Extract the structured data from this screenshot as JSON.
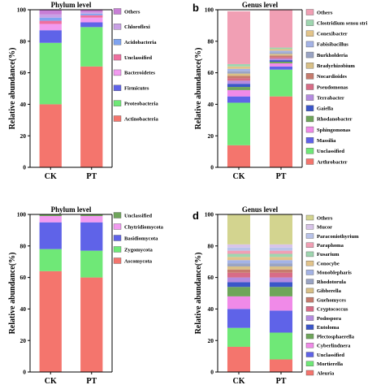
{
  "chart_data": [
    {
      "type": "bar",
      "stacked": true,
      "panel_letter": "",
      "title": "Phylum level",
      "xlabel": "",
      "ylabel": "Relative abundance(%)",
      "ylim": [
        0,
        100
      ],
      "yticks": [
        "0",
        "20",
        "40",
        "60",
        "80",
        "100"
      ],
      "categories": [
        "CK",
        "PT"
      ],
      "legend_position": "right",
      "series": [
        {
          "name": "Actinobacteria",
          "color": "#f4756d",
          "values": [
            40,
            64
          ]
        },
        {
          "name": "Proteobacteria",
          "color": "#6fe877",
          "values": [
            39,
            25
          ]
        },
        {
          "name": "Firmicutes",
          "color": "#5f63e8",
          "values": [
            8,
            3
          ]
        },
        {
          "name": "Bacteroidetes",
          "color": "#f29af0",
          "values": [
            4,
            3
          ]
        },
        {
          "name": "Unclassified",
          "color": "#ef6fa0",
          "values": [
            2,
            1.5
          ]
        },
        {
          "name": "Acidobacteria",
          "color": "#7fa3f0",
          "values": [
            2,
            1
          ]
        },
        {
          "name": "Chloroflexi",
          "color": "#c9a1e6",
          "values": [
            2,
            1
          ]
        },
        {
          "name": "Others",
          "color": "#c87ed6",
          "values": [
            3,
            1.5
          ]
        }
      ]
    },
    {
      "type": "bar",
      "stacked": true,
      "panel_letter": "b",
      "title": "Genus level",
      "xlabel": "",
      "ylabel": "Relative abundance(%)",
      "ylim": [
        0,
        100
      ],
      "yticks": [
        "0",
        "20",
        "40",
        "60",
        "80",
        "100"
      ],
      "categories": [
        "CK",
        "PT"
      ],
      "legend_position": "right",
      "series": [
        {
          "name": "Arthrobacter",
          "color": "#f4756d",
          "values": [
            14,
            45
          ]
        },
        {
          "name": "Unclassified",
          "color": "#6fe877",
          "values": [
            27,
            17
          ]
        },
        {
          "name": "Massilia",
          "color": "#5f63e8",
          "values": [
            4,
            2
          ]
        },
        {
          "name": "Sphingomonas",
          "color": "#f08ae8",
          "values": [
            4,
            2
          ]
        },
        {
          "name": "Rhodanobacter",
          "color": "#6ea55a",
          "values": [
            2,
            1
          ]
        },
        {
          "name": "Gaiella",
          "color": "#3b56c9",
          "values": [
            2,
            1
          ]
        },
        {
          "name": "Terrabacter",
          "color": "#b48be0",
          "values": [
            2,
            1
          ]
        },
        {
          "name": "Pseudomonas",
          "color": "#d86c86",
          "values": [
            1.5,
            1
          ]
        },
        {
          "name": "Nocardioides",
          "color": "#c67b6d",
          "values": [
            1.5,
            1
          ]
        },
        {
          "name": "Bradyrhizobium",
          "color": "#d9c087",
          "values": [
            1.5,
            1
          ]
        },
        {
          "name": "Burkholderia",
          "color": "#9aa4c4",
          "values": [
            1.5,
            1
          ]
        },
        {
          "name": "Fabisibacillus",
          "color": "#a4b3e6",
          "values": [
            1.5,
            1
          ]
        },
        {
          "name": "Conexibacter",
          "color": "#e3c48a",
          "values": [
            1.5,
            1
          ]
        },
        {
          "name": "Clostridium sensu stri",
          "color": "#9fd6b0",
          "values": [
            1.5,
            1
          ]
        },
        {
          "name": "Others",
          "color": "#f19fb4",
          "values": [
            33.5,
            24
          ]
        }
      ]
    },
    {
      "type": "bar",
      "stacked": true,
      "panel_letter": "",
      "title": "Phylum level",
      "xlabel": "",
      "ylabel": "Relative abundance(%)",
      "ylim": [
        0,
        100
      ],
      "yticks": [
        "0",
        "20",
        "40",
        "60",
        "80",
        "100"
      ],
      "categories": [
        "CK",
        "PT"
      ],
      "legend_position": "right",
      "series": [
        {
          "name": "Ascomycota",
          "color": "#f4756d",
          "values": [
            64,
            60
          ]
        },
        {
          "name": "Zygomycota",
          "color": "#6fe877",
          "values": [
            14,
            17
          ]
        },
        {
          "name": "Basidiomycota",
          "color": "#5f63e8",
          "values": [
            17,
            18
          ]
        },
        {
          "name": "Chytridiomycota",
          "color": "#f29af0",
          "values": [
            4,
            4
          ]
        },
        {
          "name": "Unclassified",
          "color": "#6ea55a",
          "values": [
            1,
            1
          ]
        }
      ]
    },
    {
      "type": "bar",
      "stacked": true,
      "panel_letter": "d",
      "title": "Genus level",
      "xlabel": "",
      "ylabel": "Relative abundance(%)",
      "ylim": [
        0,
        100
      ],
      "yticks": [
        "0",
        "20",
        "40",
        "60",
        "80",
        "100"
      ],
      "categories": [
        "CK",
        "PT"
      ],
      "legend_position": "right",
      "series": [
        {
          "name": "Aleuria",
          "color": "#f4756d",
          "values": [
            16,
            8
          ]
        },
        {
          "name": "Mortierella",
          "color": "#6fe877",
          "values": [
            12,
            17
          ]
        },
        {
          "name": "Unclassified",
          "color": "#5f63e8",
          "values": [
            12,
            14
          ]
        },
        {
          "name": "Cyberlindnera",
          "color": "#f08ae8",
          "values": [
            8,
            9
          ]
        },
        {
          "name": "Plectosphaerella",
          "color": "#6ea55a",
          "values": [
            6,
            6
          ]
        },
        {
          "name": "Entoloma",
          "color": "#3b56c9",
          "values": [
            3,
            3
          ]
        },
        {
          "name": "Podospora",
          "color": "#b48be0",
          "values": [
            3,
            3
          ]
        },
        {
          "name": "Cryptococcus",
          "color": "#d86c86",
          "values": [
            3,
            3
          ]
        },
        {
          "name": "Guehomyces",
          "color": "#c67b6d",
          "values": [
            2,
            2
          ]
        },
        {
          "name": "Gibberella",
          "color": "#d9c087",
          "values": [
            2,
            2
          ]
        },
        {
          "name": "Rhodotorula",
          "color": "#9aa4c4",
          "values": [
            2,
            2
          ]
        },
        {
          "name": "Monoblepharis",
          "color": "#a4b3e6",
          "values": [
            2,
            2
          ]
        },
        {
          "name": "Conocybe",
          "color": "#e3c48a",
          "values": [
            2,
            2
          ]
        },
        {
          "name": "Fusarium",
          "color": "#9fd6b0",
          "values": [
            2,
            2
          ]
        },
        {
          "name": "Paraphoma",
          "color": "#f19fb4",
          "values": [
            2,
            2
          ]
        },
        {
          "name": "Paraconiothyrium",
          "color": "#b9c3ea",
          "values": [
            2,
            2
          ]
        },
        {
          "name": "Mucor",
          "color": "#d8c4e9",
          "values": [
            2,
            2
          ]
        },
        {
          "name": "Others",
          "color": "#d3d48f",
          "values": [
            19,
            21
          ]
        }
      ]
    }
  ]
}
